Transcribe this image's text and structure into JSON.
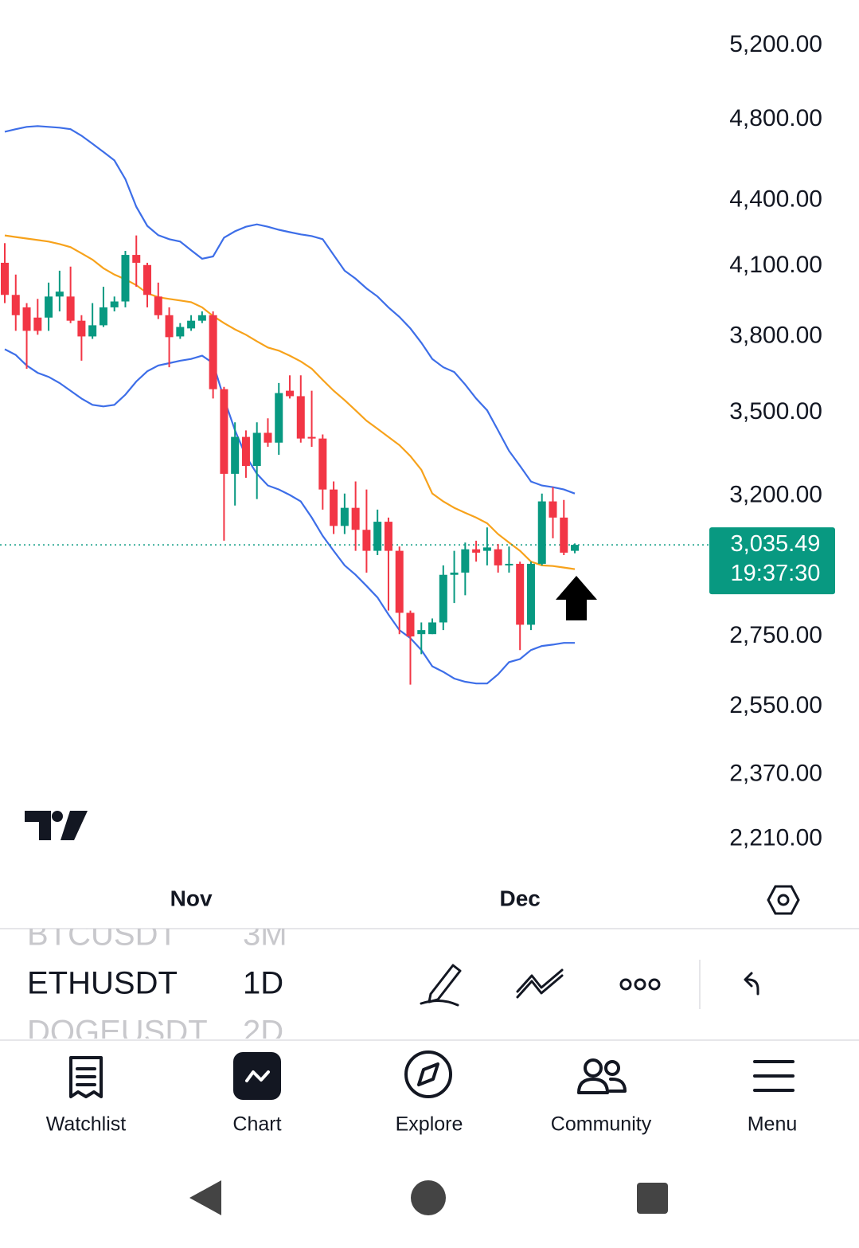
{
  "chart_data": {
    "type": "candlestick",
    "log_scale": true,
    "grid": false,
    "ylim": [
      2115,
      5461
    ],
    "yticks": [
      {
        "value": 5200,
        "label": "5,200.00"
      },
      {
        "value": 4800,
        "label": "4,800.00"
      },
      {
        "value": 4400,
        "label": "4,400.00"
      },
      {
        "value": 4100,
        "label": "4,100.00"
      },
      {
        "value": 3800,
        "label": "3,800.00"
      },
      {
        "value": 3500,
        "label": "3,500.00"
      },
      {
        "value": 3200,
        "label": "3,200.00"
      },
      {
        "value": 2750,
        "label": "2,750.00"
      },
      {
        "value": 2550,
        "label": "2,550.00"
      },
      {
        "value": 2370,
        "label": "2,370.00"
      },
      {
        "value": 2210,
        "label": "2,210.00"
      }
    ],
    "categories": [
      null,
      null,
      null,
      null,
      null,
      null,
      null,
      null,
      null,
      null,
      null,
      null,
      null,
      null,
      null,
      null,
      null,
      "Nov",
      null,
      null,
      null,
      null,
      null,
      null,
      null,
      null,
      null,
      null,
      null,
      null,
      null,
      null,
      null,
      null,
      null,
      null,
      null,
      null,
      null,
      null,
      null,
      null,
      null,
      null,
      null,
      null,
      null,
      "Dec",
      null,
      null,
      null,
      null,
      null
    ],
    "up_color": "#089981",
    "down_color": "#f23645",
    "ohlc": {
      "open": [
        4114,
        3974,
        3921,
        3878,
        3878,
        3967,
        3967,
        3865,
        3800,
        3846,
        3921,
        3946,
        4149,
        4104,
        3967,
        3888,
        3800,
        3833,
        3865,
        3888,
        3590,
        3277,
        3410,
        3305,
        3425,
        3389,
        3584,
        3563,
        3410,
        3404,
        3222,
        3098,
        3159,
        3085,
        3016,
        3112,
        3016,
        2821,
        2757,
        2757,
        2792,
        2939,
        2946,
        3021,
        3016,
        3021,
        2969,
        2974,
        2785,
        2974,
        3181,
        3126,
        3016
      ],
      "high": [
        4202,
        4062,
        3939,
        3957,
        4027,
        4079,
        4097,
        3888,
        3939,
        4009,
        3967,
        4167,
        4237,
        4114,
        4027,
        3921,
        3855,
        3888,
        3904,
        3904,
        3599,
        3464,
        3434,
        3464,
        3479,
        3614,
        3644,
        3644,
        3584,
        3419,
        3250,
        3208,
        3250,
        3222,
        3153,
        3126,
        3030,
        2828,
        2792,
        2804,
        2969,
        3016,
        3043,
        3049,
        3093,
        3038,
        3030,
        2981,
        2981,
        3208,
        3230,
        3186,
        3040
      ],
      "low": [
        3939,
        3823,
        3670,
        3807,
        3823,
        3904,
        3855,
        3702,
        3790,
        3839,
        3904,
        3921,
        4009,
        3921,
        3872,
        3676,
        3790,
        3823,
        3855,
        3554,
        3049,
        3167,
        3263,
        3189,
        3374,
        3345,
        3554,
        3389,
        3374,
        3153,
        3071,
        3071,
        3016,
        2946,
        3002,
        2828,
        2757,
        2611,
        2698,
        2757,
        2769,
        2851,
        2875,
        2981,
        2969,
        2946,
        2946,
        2710,
        2769,
        2969,
        3057,
        3002,
        3008
      ],
      "close": [
        3974,
        3888,
        3823,
        3823,
        3967,
        3988,
        3865,
        3800,
        3846,
        3921,
        3946,
        4149,
        4114,
        3974,
        3888,
        3797,
        3839,
        3865,
        3888,
        3590,
        3277,
        3410,
        3305,
        3425,
        3389,
        3575,
        3563,
        3404,
        3404,
        3222,
        3098,
        3159,
        3085,
        3016,
        3112,
        3016,
        2821,
        2750,
        2769,
        2792,
        2939,
        2946,
        3021,
        3010,
        3027,
        2969,
        2974,
        2785,
        2974,
        3181,
        3126,
        3010,
        3035.49
      ]
    },
    "bands": {
      "band_color": "#3d6ee8",
      "middle_color": "#f7a21b",
      "upper": [
        4738,
        4751,
        4763,
        4767,
        4763,
        4759,
        4751,
        4718,
        4677,
        4636,
        4594,
        4502,
        4370,
        4281,
        4238,
        4220,
        4209,
        4170,
        4132,
        4142,
        4227,
        4256,
        4277,
        4288,
        4277,
        4263,
        4252,
        4242,
        4234,
        4220,
        4149,
        4079,
        4044,
        4002,
        3967,
        3921,
        3881,
        3833,
        3774,
        3709,
        3676,
        3657,
        3608,
        3554,
        3509,
        3434,
        3359,
        3305,
        3250,
        3236,
        3230,
        3222,
        3208
      ],
      "middle": [
        4237,
        4230,
        4223,
        4216,
        4209,
        4198,
        4184,
        4156,
        4128,
        4090,
        4062,
        4041,
        4016,
        3981,
        3964,
        3957,
        3950,
        3943,
        3921,
        3885,
        3855,
        3829,
        3807,
        3780,
        3755,
        3742,
        3722,
        3699,
        3670,
        3626,
        3584,
        3548,
        3509,
        3470,
        3440,
        3410,
        3380,
        3340,
        3291,
        3208,
        3181,
        3159,
        3142,
        3126,
        3107,
        3071,
        3043,
        3016,
        2981,
        2969,
        2967,
        2962,
        2957
      ],
      "lower": [
        3748,
        3725,
        3683,
        3654,
        3638,
        3614,
        3584,
        3554,
        3530,
        3524,
        3530,
        3569,
        3620,
        3660,
        3683,
        3692,
        3702,
        3709,
        3722,
        3692,
        3554,
        3434,
        3340,
        3277,
        3236,
        3222,
        3203,
        3181,
        3126,
        3065,
        3016,
        2969,
        2939,
        2904,
        2868,
        2816,
        2769,
        2745,
        2710,
        2663,
        2647,
        2628,
        2619,
        2614,
        2614,
        2640,
        2675,
        2684,
        2710,
        2722,
        2726,
        2731,
        2731
      ]
    },
    "current_price": {
      "value": 3035.49,
      "label": "3,035.49",
      "color": "#089981"
    },
    "countdown": "19:37:30"
  },
  "symbol_picker": {
    "rows": [
      [
        "BTCUSDT",
        "3M"
      ],
      [
        "ETHUSDT",
        "1D"
      ],
      [
        "DOGEUSDT",
        "2D"
      ]
    ]
  },
  "bottom_nav": [
    "Watchlist",
    "Chart",
    "Explore",
    "Community",
    "Menu"
  ]
}
